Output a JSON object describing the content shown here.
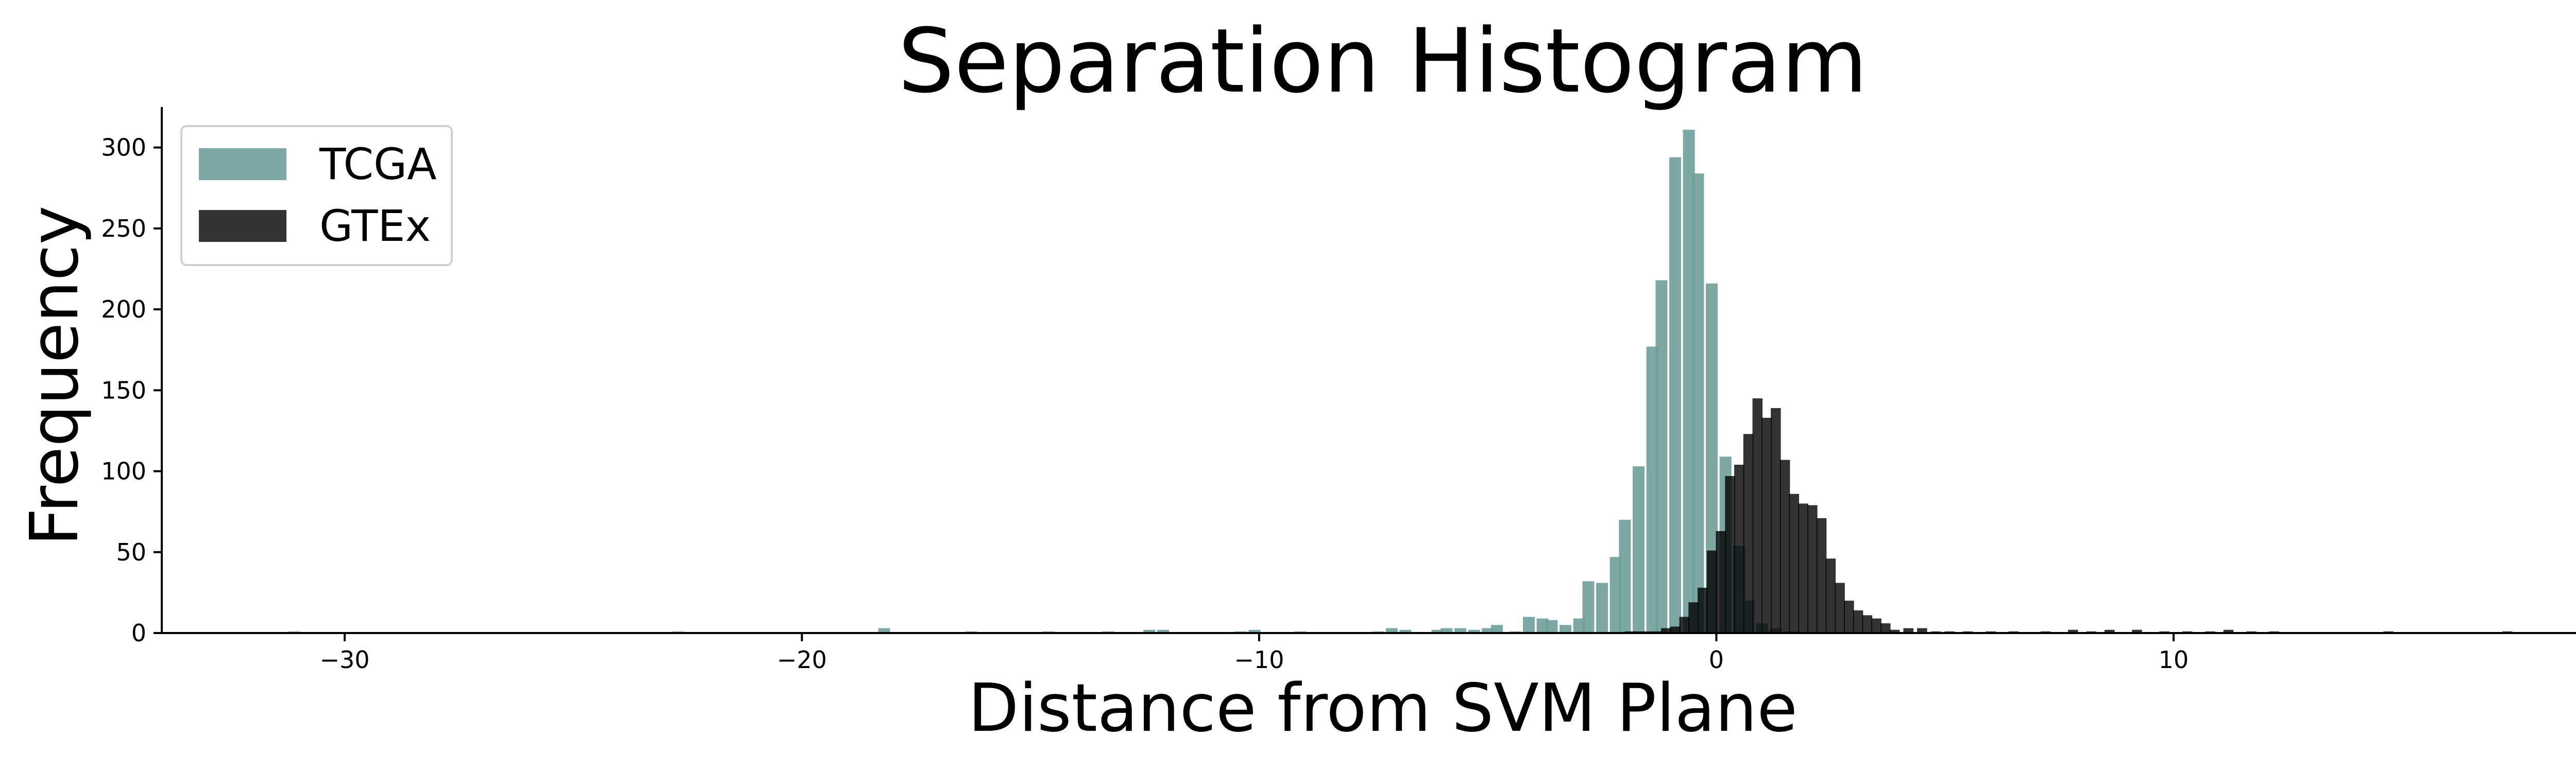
{
  "chart_data": {
    "type": "bar",
    "title": "Separation Histogram",
    "xlabel": "Distance from SVM Plane",
    "ylabel": "Frequency",
    "xlim": [
      -34,
      19.5
    ],
    "ylim": [
      0,
      325
    ],
    "x_ticks": [
      -30,
      -20,
      -10,
      0,
      10
    ],
    "x_tick_labels": [
      "−30",
      "−20",
      "−10",
      "0",
      "10"
    ],
    "y_ticks": [
      0,
      50,
      100,
      150,
      200,
      250,
      300
    ],
    "y_tick_labels": [
      "0",
      "50",
      "100",
      "150",
      "200",
      "250",
      "300"
    ],
    "grid": false,
    "legend_position": "top-left",
    "series": [
      {
        "name": "TCGA",
        "color": "#6f9e99",
        "opacity": 0.9,
        "bin_width": 0.26,
        "bins": [
          [
            -31.1,
            1
          ],
          [
            -22.7,
            1
          ],
          [
            -18.2,
            3
          ],
          [
            -16.3,
            1
          ],
          [
            -14.6,
            1
          ],
          [
            -13.3,
            1
          ],
          [
            -12.4,
            2
          ],
          [
            -12.1,
            2
          ],
          [
            -10.4,
            1
          ],
          [
            -10.1,
            2
          ],
          [
            -9.1,
            1
          ],
          [
            -7.4,
            1
          ],
          [
            -7.1,
            3
          ],
          [
            -6.8,
            2
          ],
          [
            -6.1,
            2
          ],
          [
            -5.9,
            3
          ],
          [
            -5.6,
            3
          ],
          [
            -5.3,
            2
          ],
          [
            -5.0,
            3
          ],
          [
            -4.8,
            5
          ],
          [
            -4.4,
            1
          ],
          [
            -4.1,
            10
          ],
          [
            -3.8,
            9
          ],
          [
            -3.6,
            8
          ],
          [
            -3.3,
            5
          ],
          [
            -3.0,
            9
          ],
          [
            -2.8,
            32
          ],
          [
            -2.5,
            31
          ],
          [
            -2.2,
            47
          ],
          [
            -2.0,
            70
          ],
          [
            -1.7,
            103
          ],
          [
            -1.4,
            177
          ],
          [
            -1.2,
            218
          ],
          [
            -0.9,
            294
          ],
          [
            -0.6,
            311
          ],
          [
            -0.4,
            284
          ],
          [
            -0.1,
            216
          ],
          [
            0.2,
            109
          ],
          [
            0.5,
            54
          ],
          [
            0.7,
            20
          ],
          [
            1.0,
            6
          ],
          [
            1.3,
            3
          ],
          [
            1.6,
            1
          ]
        ]
      },
      {
        "name": "GTEx",
        "color": "#000000",
        "opacity": 0.8,
        "bin_width": 0.22,
        "bins": [
          [
            -1.9,
            1
          ],
          [
            -1.7,
            1
          ],
          [
            -1.5,
            1
          ],
          [
            -1.3,
            1
          ],
          [
            -1.1,
            3
          ],
          [
            -0.9,
            4
          ],
          [
            -0.7,
            10
          ],
          [
            -0.5,
            19
          ],
          [
            -0.3,
            28
          ],
          [
            -0.1,
            51
          ],
          [
            0.1,
            63
          ],
          [
            0.3,
            97
          ],
          [
            0.5,
            104
          ],
          [
            0.7,
            123
          ],
          [
            0.9,
            145
          ],
          [
            1.1,
            133
          ],
          [
            1.3,
            139
          ],
          [
            1.5,
            107
          ],
          [
            1.7,
            86
          ],
          [
            1.9,
            80
          ],
          [
            2.1,
            79
          ],
          [
            2.3,
            71
          ],
          [
            2.5,
            46
          ],
          [
            2.7,
            31
          ],
          [
            2.9,
            20
          ],
          [
            3.1,
            14
          ],
          [
            3.3,
            11
          ],
          [
            3.5,
            9
          ],
          [
            3.7,
            6
          ],
          [
            3.9,
            2
          ],
          [
            4.2,
            3
          ],
          [
            4.5,
            3
          ],
          [
            4.8,
            1
          ],
          [
            5.1,
            1
          ],
          [
            5.5,
            1
          ],
          [
            6.0,
            1
          ],
          [
            6.5,
            1
          ],
          [
            7.2,
            1
          ],
          [
            7.8,
            2
          ],
          [
            8.2,
            1
          ],
          [
            8.6,
            2
          ],
          [
            9.2,
            2
          ],
          [
            9.8,
            1
          ],
          [
            10.3,
            1
          ],
          [
            10.8,
            1
          ],
          [
            11.2,
            2
          ],
          [
            11.7,
            1
          ],
          [
            12.2,
            1
          ],
          [
            14.7,
            1
          ],
          [
            17.3,
            1
          ]
        ]
      }
    ]
  }
}
